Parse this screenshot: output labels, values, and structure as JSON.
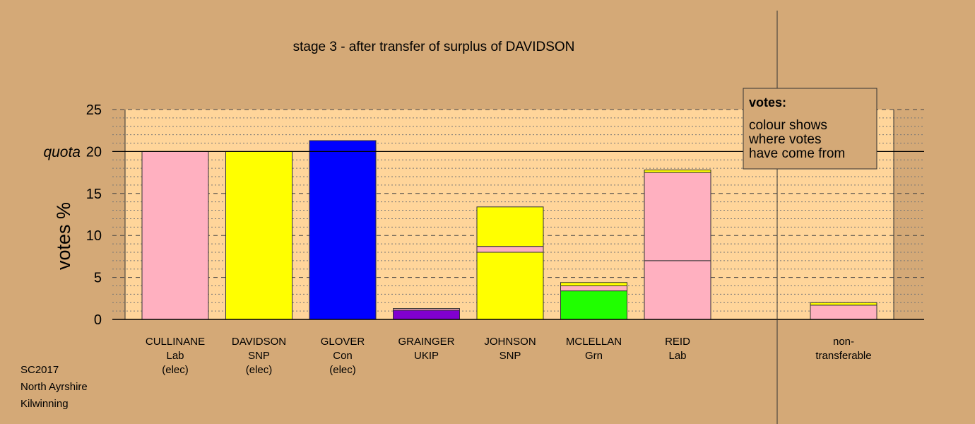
{
  "chart_data": {
    "type": "bar",
    "title": "stage 3 - after transfer of surplus of DAVIDSON",
    "ylabel": "votes %",
    "ylim": [
      0,
      25
    ],
    "yticks": [
      0,
      5,
      10,
      15,
      20,
      25
    ],
    "quota": 20,
    "quota_label": "quota",
    "candidates": [
      {
        "name": "CULLINANE",
        "party": "Lab",
        "status": "(elec)",
        "segments": [
          {
            "value": 20.0,
            "color": "#ffb0c0"
          }
        ]
      },
      {
        "name": "DAVIDSON",
        "party": "SNP",
        "status": "(elec)",
        "segments": [
          {
            "value": 20.0,
            "color": "#ffff00"
          }
        ]
      },
      {
        "name": "GLOVER",
        "party": "Con",
        "status": "(elec)",
        "segments": [
          {
            "value": 21.3,
            "color": "#0000ff"
          }
        ]
      },
      {
        "name": "GRAINGER",
        "party": "UKIP",
        "status": "",
        "segments": [
          {
            "value": 1.1,
            "color": "#8000d0"
          },
          {
            "value": 0.2,
            "color": "#ffb0c0"
          }
        ]
      },
      {
        "name": "JOHNSON",
        "party": "SNP",
        "status": "",
        "segments": [
          {
            "value": 8.0,
            "color": "#ffff00"
          },
          {
            "value": 0.7,
            "color": "#ffb0c0"
          },
          {
            "value": 4.7,
            "color": "#ffff00"
          }
        ]
      },
      {
        "name": "MCLELLAN",
        "party": "Grn",
        "status": "",
        "segments": [
          {
            "value": 3.4,
            "color": "#20ff00"
          },
          {
            "value": 0.6,
            "color": "#ffb0c0"
          },
          {
            "value": 0.4,
            "color": "#ffff00"
          }
        ]
      },
      {
        "name": "REID",
        "party": "Lab",
        "status": "",
        "segments": [
          {
            "value": 7.0,
            "color": "#ffb0c0"
          },
          {
            "value": 10.5,
            "color": "#ffb0c0"
          },
          {
            "value": 0.3,
            "color": "#ffff00"
          }
        ]
      }
    ],
    "nontransferable": {
      "label_line1": "non-",
      "label_line2": "transferable",
      "segments": [
        {
          "value": 1.7,
          "color": "#ffb0c0"
        },
        {
          "value": 0.3,
          "color": "#ffff00"
        }
      ]
    },
    "legend": {
      "title": "votes:",
      "lines": [
        "colour shows",
        "where votes",
        "have come from"
      ],
      "position": "top-right"
    },
    "colors": {
      "background": "#d4a977",
      "plot_area": "#ffd59a"
    }
  },
  "footer": {
    "line1": "SC2017",
    "line2": "North Ayrshire",
    "line3": "Kilwinning"
  }
}
